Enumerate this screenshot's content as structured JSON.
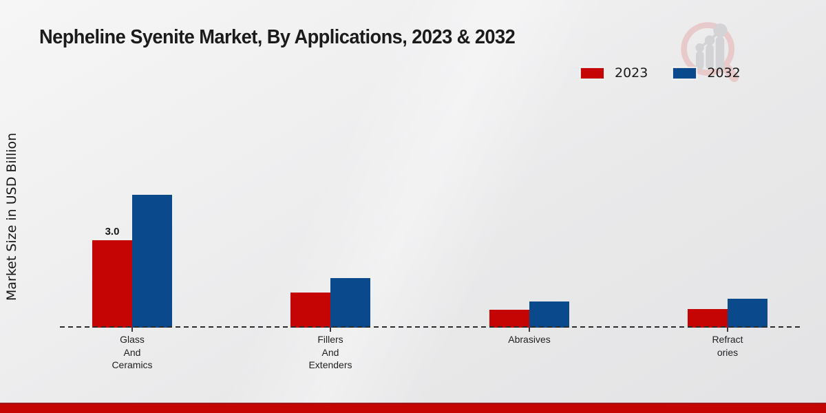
{
  "title": "Nepheline Syenite Market, By Applications, 2023 & 2032",
  "y_axis_label": "Market Size in USD Billion",
  "colors": {
    "series_2023": "#c50404",
    "series_2032": "#0a4a8c",
    "footer_accent": "#c50404"
  },
  "legend": {
    "position": "top-right",
    "items": [
      {
        "label": "2023",
        "color": "#c50404"
      },
      {
        "label": "2032",
        "color": "#0a4a8c"
      }
    ]
  },
  "branding": {
    "logo_icon": "magnifier-bar-chart-watermark"
  },
  "chart_data": {
    "type": "bar",
    "title": "Nepheline Syenite Market, By Applications, 2023 & 2032",
    "xlabel": "",
    "ylabel": "Market Size in USD Billion",
    "categories": [
      "Glass\nAnd\nCeramics",
      "Fillers\nAnd\nExtenders",
      "Abrasives",
      "Refract\nories"
    ],
    "series": [
      {
        "name": "2023",
        "color": "#c50404",
        "values": [
          3.0,
          1.2,
          0.62,
          0.64
        ]
      },
      {
        "name": "2032",
        "color": "#0a4a8c",
        "values": [
          4.56,
          1.7,
          0.9,
          1.0
        ]
      }
    ],
    "value_labels": [
      {
        "series_index": 0,
        "category_index": 0,
        "text": "3.0"
      }
    ],
    "ylim": [
      0,
      5
    ],
    "grid": false,
    "baseline_style": "dashed",
    "legend_position": "top-right"
  }
}
